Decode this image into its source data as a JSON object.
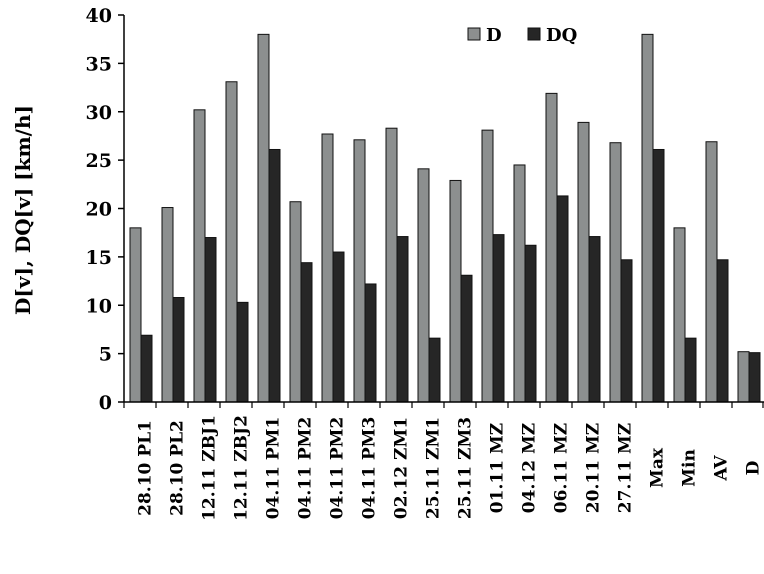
{
  "chart_data": {
    "type": "bar",
    "title": "",
    "xlabel": "",
    "ylabel": "D[v], DQ[v] [km/h]",
    "ylim": [
      0,
      40
    ],
    "yticks": [
      0,
      5,
      10,
      15,
      20,
      25,
      30,
      35,
      40
    ],
    "grid": false,
    "legend_position": "top-right",
    "categories": [
      "28.10 PL1",
      "28.10 PL2",
      "12.11 ZBJ1",
      "12.11 ZBJ2",
      "04.11 PM1",
      "04.11 PM2",
      "04.11 PM2",
      "04.11 PM3",
      "02.12 ZM1",
      "25.11 ZM1",
      "25.11 ZM3",
      "01.11 MZ",
      "04.12 MZ",
      "06.11 MZ",
      "20.11 MZ",
      "27.11 MZ",
      "Max",
      "Min",
      "AV",
      "D"
    ],
    "series": [
      {
        "name": "D",
        "color": "#8c8f8f",
        "values": [
          18.0,
          20.1,
          30.2,
          33.1,
          38.0,
          20.7,
          27.7,
          27.1,
          28.3,
          24.1,
          22.9,
          28.1,
          24.5,
          31.9,
          28.9,
          26.8,
          38.0,
          18.0,
          26.9,
          5.2
        ]
      },
      {
        "name": "DQ",
        "color": "#262626",
        "values": [
          6.9,
          10.8,
          17.0,
          10.3,
          26.1,
          14.4,
          15.5,
          12.2,
          17.1,
          6.6,
          13.1,
          17.3,
          16.2,
          21.3,
          17.1,
          14.7,
          26.1,
          6.6,
          14.7,
          5.1
        ]
      }
    ]
  }
}
